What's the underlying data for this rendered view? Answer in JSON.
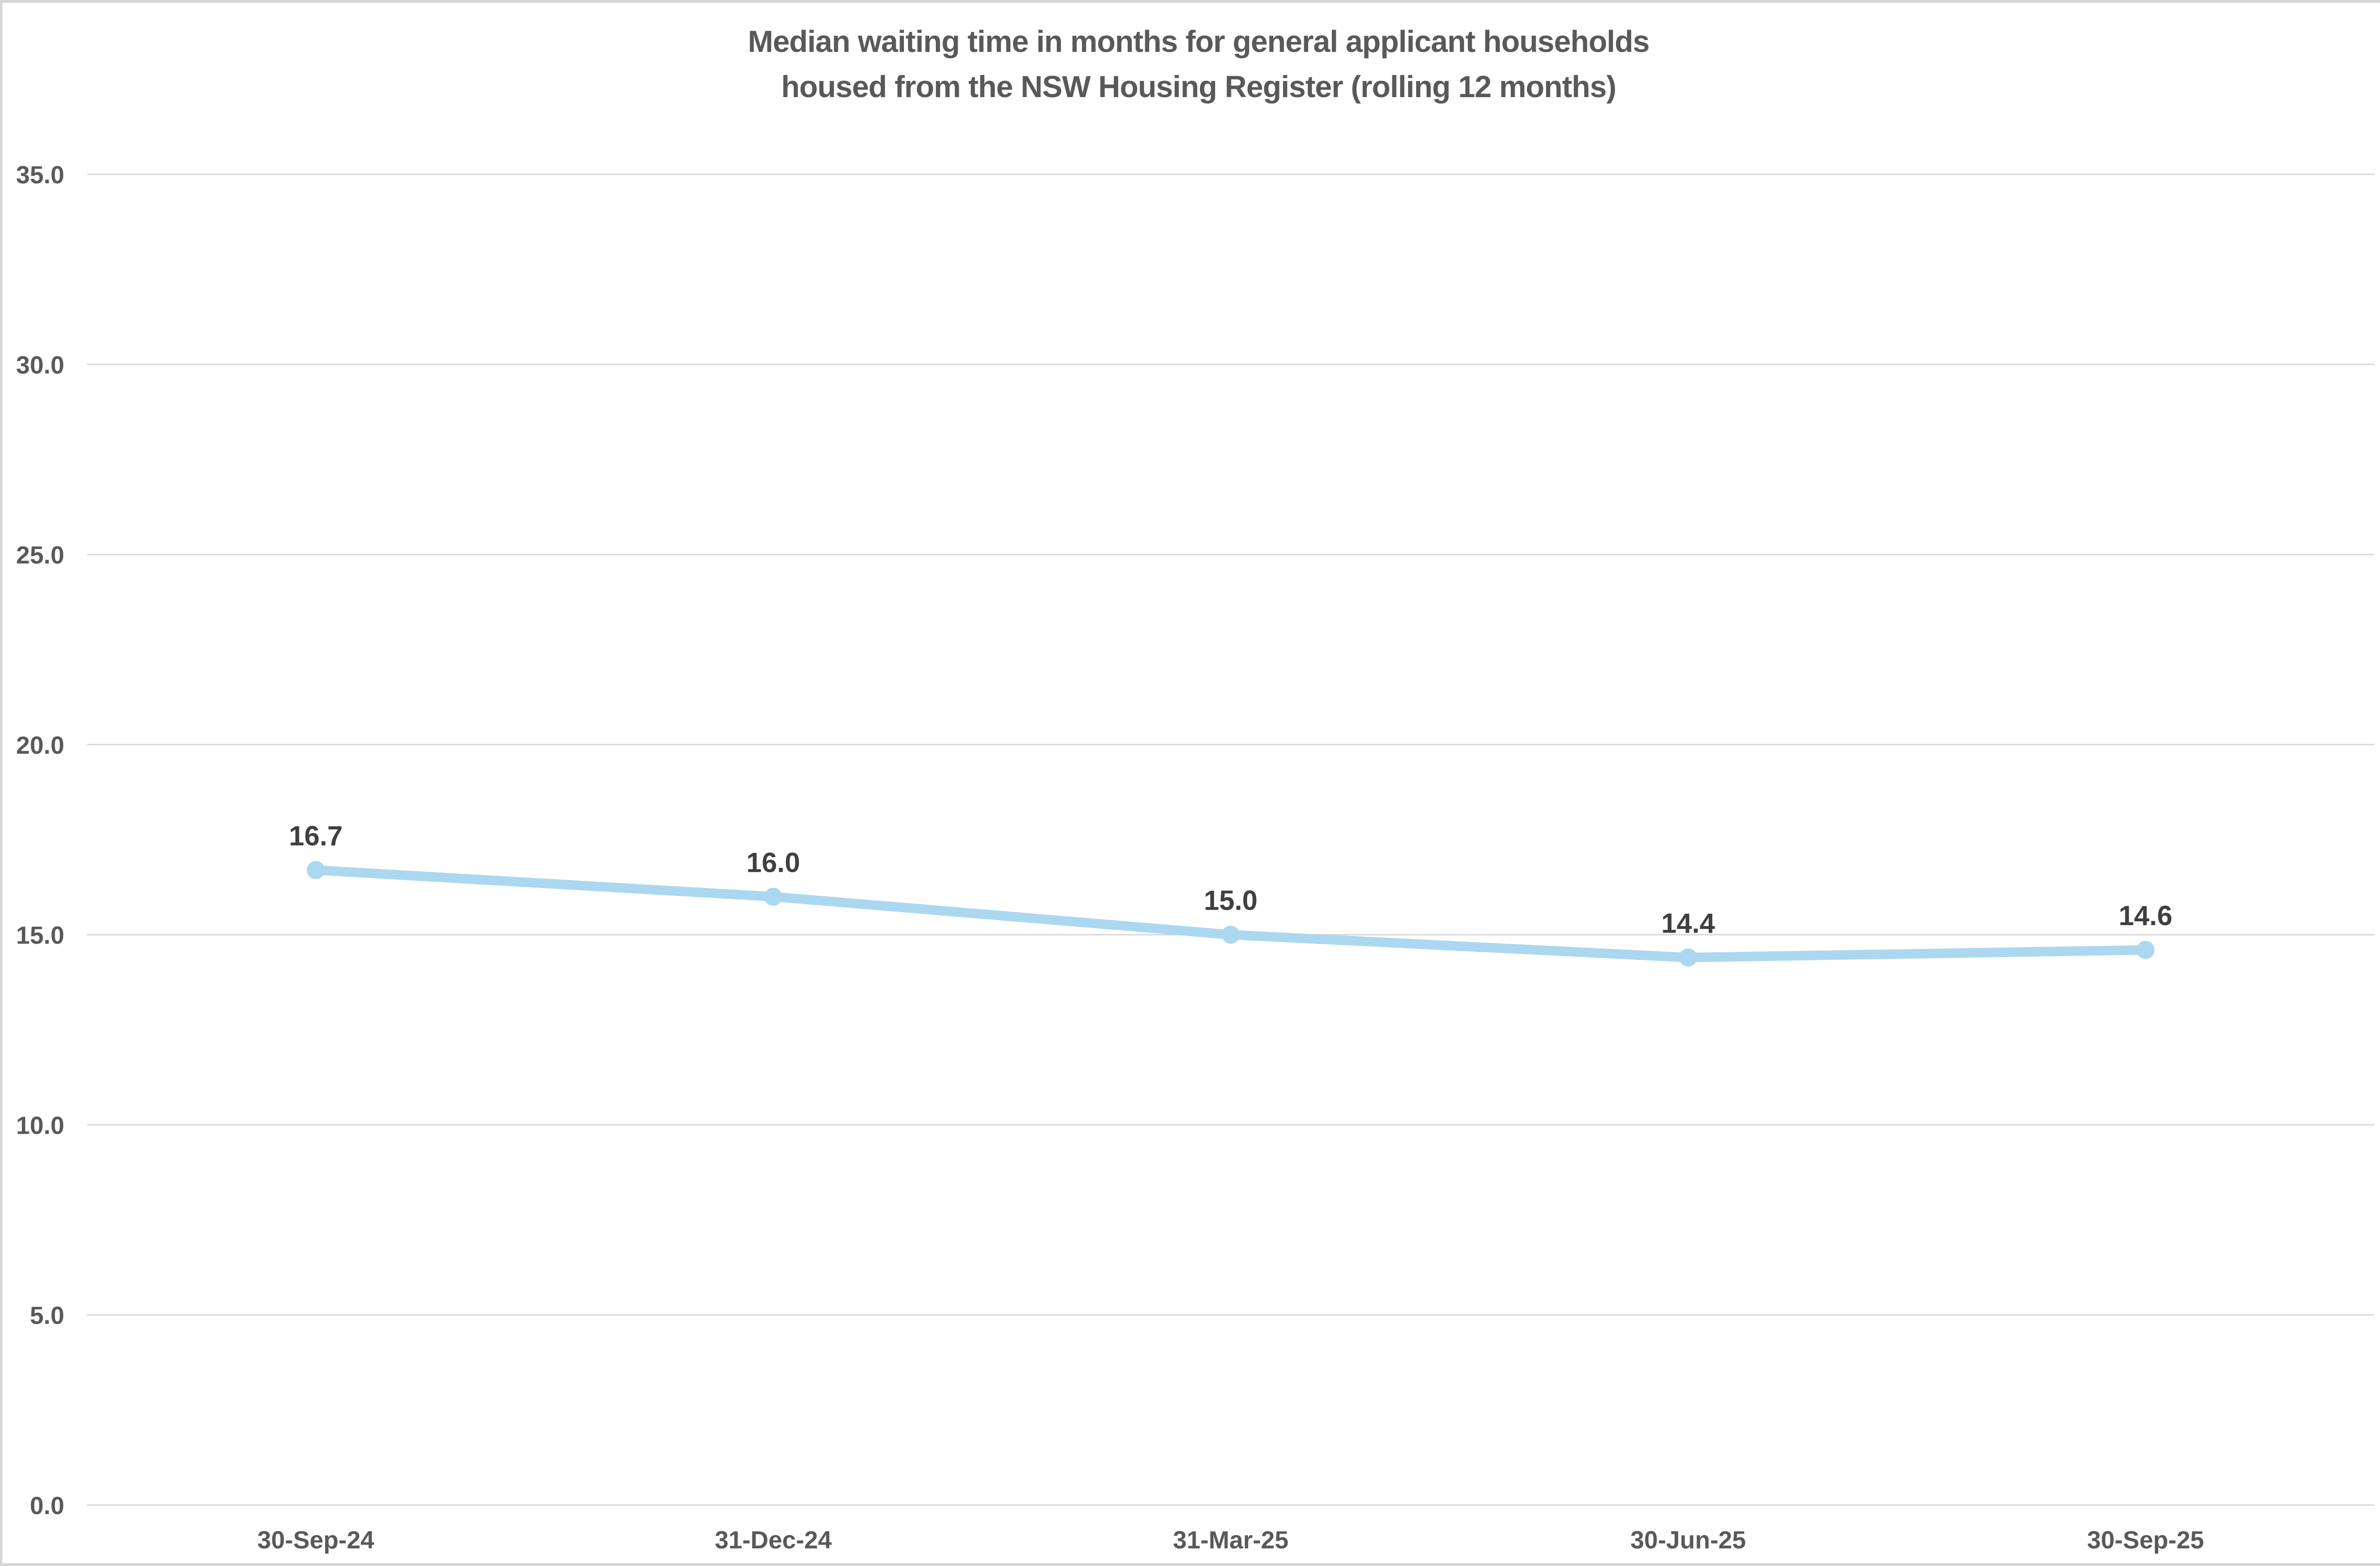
{
  "window": {
    "background": "#FFFFFF",
    "border_color": "#D6D6D6"
  },
  "chart_data": {
    "type": "line",
    "title": "Median waiting time in months for general applicant households housed from the NSW Housing Register (rolling 12 months)",
    "title_lines": [
      "Median waiting time in months for general applicant households",
      "housed from the NSW Housing Register (rolling 12 months)"
    ],
    "categories": [
      "30-Sep-24",
      "31-Dec-24",
      "31-Mar-25",
      "30-Jun-25",
      "30-Sep-25"
    ],
    "series": [
      {
        "name": "Median waiting time in months",
        "values": [
          16.7,
          16.0,
          15.0,
          14.4,
          14.6
        ]
      }
    ],
    "data_labels": [
      "16.7",
      "16.0",
      "15.0",
      "14.4",
      "14.6"
    ],
    "xlabel": "",
    "ylabel": "",
    "ylim": [
      0,
      35
    ],
    "y_step": 5,
    "y_tick_labels": [
      "35.0",
      "30.0",
      "25.0",
      "20.0",
      "15.0",
      "10.0",
      "5.0",
      "0.0"
    ],
    "grid": true,
    "legend_position": "none",
    "line_color": "#ABD8F0",
    "marker": "circle",
    "marker_color": "#ABD8F0",
    "gridline_color": "#D9D9D9",
    "axis_label_color": "#595959",
    "data_label_color": "#3F3F3F",
    "title_color": "#595959"
  }
}
